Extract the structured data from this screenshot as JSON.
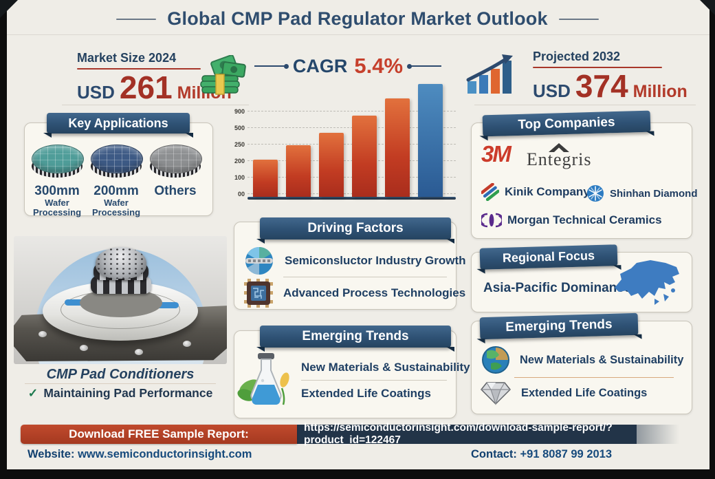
{
  "frame": {
    "title": "Global CMP Pad Regulator Market Outlook"
  },
  "stats": {
    "market_size_label": "Market Size 2024",
    "market_size_currency": "USD",
    "market_size_value": "261",
    "market_size_unit": "Million",
    "market_size_icon": "money-stack-icon",
    "cagr_label": "CAGR",
    "cagr_value": "5.4%",
    "projected_label": "Projected 2032",
    "projected_currency": "USD",
    "projected_value": "374",
    "projected_unit": "Million",
    "projected_icon": "growth-arrow-icon"
  },
  "chart_data": {
    "type": "bar",
    "title": "",
    "xlabel": "",
    "ylabel": "",
    "categories": [],
    "y_tick_labels": [
      "900",
      "500",
      "250",
      "200",
      "100",
      "00"
    ],
    "values_relative": [
      33,
      46,
      57,
      72,
      87,
      100
    ],
    "bar_colors": [
      "orange",
      "orange",
      "orange",
      "orange",
      "orange",
      "blue"
    ],
    "orange_hex": "#c23c22",
    "blue_hex": "#2a5a93",
    "grid": "dashed horizontal"
  },
  "key_applications": {
    "header": "Key Applications",
    "items": [
      {
        "title": "300mm",
        "subtitle": "Wafer Processing",
        "wafer_color": "#4f9d99",
        "icon": "wafer-disc-icon"
      },
      {
        "title": "200mm",
        "subtitle": "Wafer Processing",
        "wafer_color": "#3d5a85",
        "icon": "wafer-disc-icon"
      },
      {
        "title": "Others",
        "subtitle": "",
        "wafer_color": "#8d8f91",
        "icon": "wafer-disc-icon"
      }
    ]
  },
  "top_companies": {
    "header": "Top Companies",
    "items": [
      {
        "name": "3M",
        "logo": "3m-logo"
      },
      {
        "name": "Entegris",
        "logo": "entegris-logo"
      },
      {
        "name": "Kinik Company",
        "logo": "kinik-logo"
      },
      {
        "name": "Shinhan Diamond",
        "logo": "shinhan-logo"
      },
      {
        "name": "Morgan Technical Ceramics",
        "logo": "morgan-logo"
      }
    ]
  },
  "cmp_unit": {
    "caption": "CMP Pad Conditioners",
    "check": "✓",
    "bullet": "Maintaining Pad Performance"
  },
  "driving_factors": {
    "header": "Driving Factors",
    "items": [
      {
        "icon": "globe-semiconductor-icon",
        "text": "Semiconsluctor Industry Growth"
      },
      {
        "icon": "chip-icon",
        "text": "Advanced Process Technologies"
      }
    ]
  },
  "emerging_trends_center": {
    "header": "Emerging Trends",
    "icon": "flask-leaves-icon",
    "items": [
      {
        "text": "New Materials & Sustainability"
      },
      {
        "text": "Extended Life Coatings"
      }
    ]
  },
  "regional_focus": {
    "header": "Regional Focus",
    "text": "Asia-Pacific Dominance",
    "icon": "asia-map-icon"
  },
  "emerging_trends_right": {
    "header": "Emerging Trends",
    "items": [
      {
        "icon": "globe-leaf-icon",
        "text": "New Materials & Sustainability"
      },
      {
        "icon": "diamond-icon",
        "text": "Extended Life Coatings"
      }
    ]
  },
  "footer": {
    "download_label": "Download FREE Sample Report:",
    "download_url": "https://semiconductorinsight.com/download-sample-report/?product_id=122467",
    "website_label": "Website:",
    "website_value": "www.semiconductorinsight.com",
    "contact_label": "Contact:",
    "contact_value": "+91 8087 99 2013"
  },
  "colors": {
    "background": "#efede7",
    "navy": "#2c4a6e",
    "accent_red": "#a33125",
    "ribbon_blue": "#2e5174",
    "footer_red_box": "#b0402a",
    "footer_url_box": "#223448"
  }
}
